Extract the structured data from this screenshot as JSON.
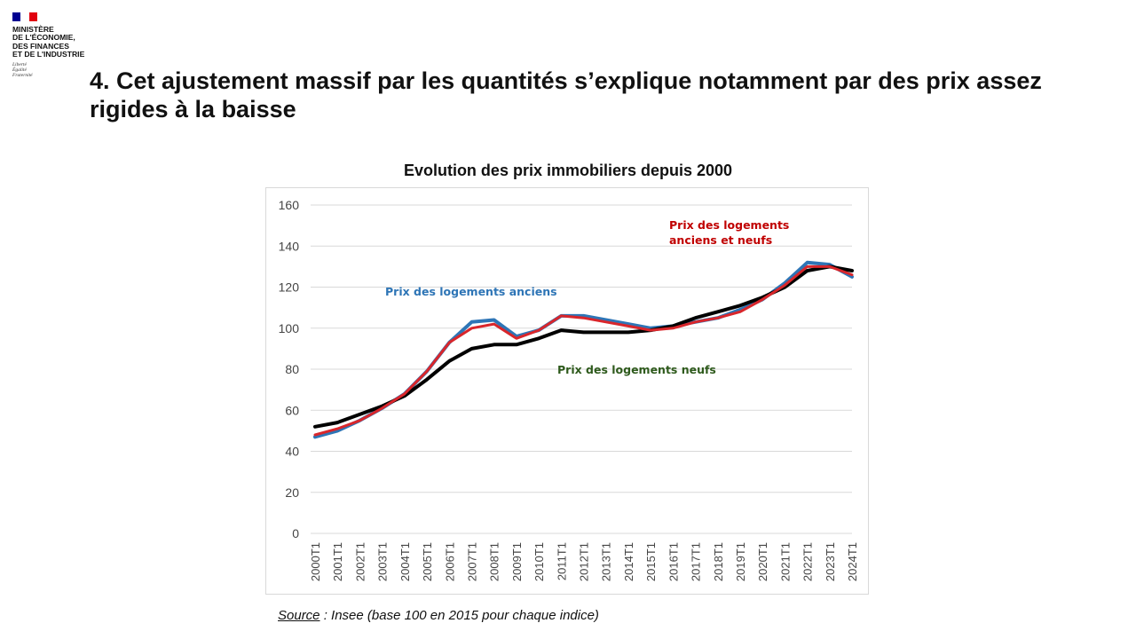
{
  "logo": {
    "name_lines": [
      "MINISTÈRE",
      "DE L'ÉCONOMIE,",
      "DES FINANCES",
      "ET DE L'INDUSTRIE"
    ],
    "motto": [
      "Liberté",
      "Égalité",
      "Fraternité"
    ],
    "flag_colors": [
      "#000091",
      "#ffffff",
      "#e1000f"
    ]
  },
  "slide": {
    "title": "4. Cet ajustement massif par les quantités s’explique notamment par des prix assez rigides à la baisse"
  },
  "source": {
    "label": "Source",
    "text": " : Insee (base 100 en 2015 pour chaque indice)"
  },
  "chart_data": {
    "type": "line",
    "title": "Evolution des prix immobiliers depuis 2000",
    "xlabel": "",
    "ylabel": "",
    "ylim": [
      0,
      160
    ],
    "yticks": [
      0,
      20,
      40,
      60,
      80,
      100,
      120,
      140,
      160
    ],
    "grid": true,
    "x": [
      "2000T1",
      "2001T1",
      "2002T1",
      "2003T1",
      "2004T1",
      "2005T1",
      "2006T1",
      "2007T1",
      "2008T1",
      "2009T1",
      "2010T1",
      "2011T1",
      "2012T1",
      "2013T1",
      "2014T1",
      "2015T1",
      "2016T1",
      "2017T1",
      "2018T1",
      "2019T1",
      "2020T1",
      "2021T1",
      "2022T1",
      "2023T1",
      "2024T1"
    ],
    "series": [
      {
        "name": "Prix des logements anciens",
        "color": "#2e75b6",
        "values": [
          47,
          50,
          55,
          61,
          68,
          79,
          93,
          103,
          104,
          96,
          99,
          106,
          106,
          104,
          102,
          100,
          101,
          103,
          105,
          109,
          114,
          122,
          132,
          131,
          125
        ]
      },
      {
        "name": "Prix des logements neufs",
        "color": "#000000",
        "values": [
          52,
          54,
          58,
          62,
          67,
          75,
          84,
          90,
          92,
          92,
          95,
          99,
          98,
          98,
          98,
          99,
          101,
          105,
          108,
          111,
          115,
          120,
          128,
          130,
          128
        ]
      },
      {
        "name": "Prix des logements anciens et neufs",
        "color": "#d9262b",
        "values": [
          48,
          51,
          55,
          61,
          68,
          79,
          93,
          100,
          102,
          95,
          99,
          106,
          105,
          103,
          101,
          99,
          100,
          103,
          105,
          108,
          114,
          121,
          130,
          130,
          126
        ]
      }
    ],
    "annotations": [
      {
        "series": "Prix des logements anciens",
        "lines": [
          "Prix des logements anciens"
        ],
        "color": "#2e75b6"
      },
      {
        "series": "Prix des logements neufs",
        "lines": [
          "Prix des logements neufs"
        ],
        "color": "#2e5a1c"
      },
      {
        "series": "Prix des logements anciens et neufs",
        "lines": [
          "Prix des logements",
          "anciens et neufs"
        ],
        "color": "#c00000"
      }
    ]
  }
}
